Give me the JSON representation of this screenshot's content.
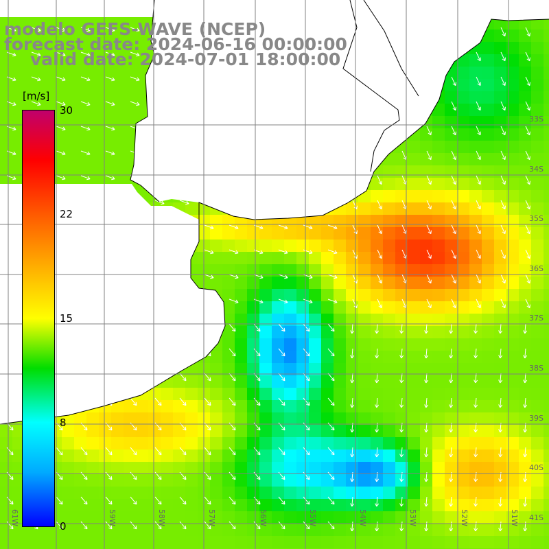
{
  "title": {
    "line1": "modelo GEFS-WAVE (NCEP)",
    "line2": "forecast date: 2024-06-16 00:00:00",
    "line3": "valid date: 2024-07-01 18:00:00"
  },
  "colorbar": {
    "unit": "[m/s]",
    "labels": [
      "30",
      "22",
      "15",
      "8",
      "0"
    ],
    "colors": [
      "#0000ff",
      "#00aaff",
      "#00ffff",
      "#00dd00",
      "#ffff00",
      "#ffaa00",
      "#ff5a00",
      "#ff0000",
      "#c0006c"
    ]
  },
  "map": {
    "lat_labels": [
      "33S",
      "34S",
      "35S",
      "36S",
      "37S",
      "38S",
      "39S",
      "40S",
      "41S"
    ],
    "lon_labels": [
      "61W",
      "59W",
      "58W",
      "57W",
      "56W",
      "55W",
      "54W",
      "53W",
      "52W",
      "51W"
    ],
    "land_color": "#ffffff",
    "grid_color": "#808080"
  }
}
